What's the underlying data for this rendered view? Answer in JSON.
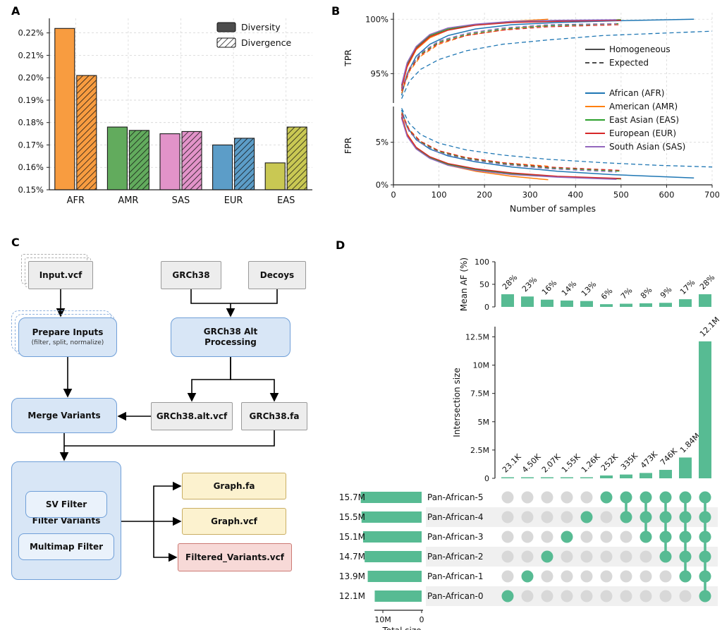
{
  "figure": {
    "panels": {
      "a": "A",
      "b": "B",
      "c": "C",
      "d": "D"
    }
  },
  "chart_data": [
    {
      "id": "panel-a",
      "type": "bar",
      "categories": [
        "AFR",
        "AMR",
        "SAS",
        "EUR",
        "EAS"
      ],
      "series": [
        {
          "name": "Diversity",
          "pattern": "solid",
          "values": [
            0.222,
            0.178,
            0.175,
            0.17,
            0.162
          ]
        },
        {
          "name": "Divergence",
          "pattern": "hatch",
          "values": [
            0.201,
            0.1765,
            0.176,
            0.173,
            0.178
          ]
        }
      ],
      "bar_colors": [
        "#F89C40",
        "#62AB5D",
        "#E293C9",
        "#5C9DC8",
        "#C9C853"
      ],
      "ylim": [
        0.15,
        0.2265
      ],
      "yticks": [
        {
          "v": 0.15,
          "label": "0.15%"
        },
        {
          "v": 0.16,
          "label": "0.16%"
        },
        {
          "v": 0.17,
          "label": "0.17%"
        },
        {
          "v": 0.18,
          "label": "0.18%"
        },
        {
          "v": 0.19,
          "label": "0.19%"
        },
        {
          "v": 0.2,
          "label": "0.20%"
        },
        {
          "v": 0.21,
          "label": "0.21%"
        },
        {
          "v": 0.22,
          "label": "0.22%"
        }
      ]
    },
    {
      "id": "panel-b",
      "type": "line",
      "xlabel": "Number of samples",
      "xlim": [
        0,
        700
      ],
      "xticks": [
        0,
        100,
        200,
        300,
        400,
        500,
        600,
        700
      ],
      "subpanels": [
        {
          "ylabel": "TPR",
          "ylim": [
            92.3,
            100.6
          ],
          "yticks": [
            {
              "v": 95,
              "label": "95%"
            },
            {
              "v": 100,
              "label": "100%"
            }
          ]
        },
        {
          "ylabel": "FPR",
          "ylim": [
            0,
            9.2
          ],
          "yticks": [
            {
              "v": 0,
              "label": "0%"
            },
            {
              "v": 5,
              "label": "5%"
            }
          ]
        }
      ],
      "style_legend": [
        {
          "label": "Homogeneous",
          "dash": "solid"
        },
        {
          "label": "Expected",
          "dash": "dashed"
        }
      ],
      "populations": [
        {
          "key": "AFR",
          "label": "African (AFR)",
          "color": "#1f77b4"
        },
        {
          "key": "AMR",
          "label": "American (AMR)",
          "color": "#ff7f0e"
        },
        {
          "key": "EAS",
          "label": "East Asian (EAS)",
          "color": "#2ca02c"
        },
        {
          "key": "EUR",
          "label": "European (EUR)",
          "color": "#d62728"
        },
        {
          "key": "SAS",
          "label": "South Asian (SAS)",
          "color": "#9467bd"
        }
      ],
      "tpr": {
        "solid": {
          "AFR": [
            [
              18,
              93.0
            ],
            [
              30,
              95.0
            ],
            [
              50,
              96.6
            ],
            [
              80,
              97.7
            ],
            [
              120,
              98.5
            ],
            [
              180,
              99.1
            ],
            [
              260,
              99.5
            ],
            [
              360,
              99.7
            ],
            [
              480,
              99.85
            ],
            [
              660,
              100.0
            ]
          ],
          "AMR": [
            [
              18,
              93.6
            ],
            [
              30,
              95.6
            ],
            [
              50,
              97.2
            ],
            [
              80,
              98.3
            ],
            [
              120,
              99.0
            ],
            [
              180,
              99.5
            ],
            [
              260,
              99.8
            ],
            [
              340,
              100.0
            ]
          ],
          "EAS": [
            [
              18,
              93.9
            ],
            [
              30,
              95.9
            ],
            [
              50,
              97.4
            ],
            [
              80,
              98.5
            ],
            [
              120,
              99.1
            ],
            [
              180,
              99.5
            ],
            [
              260,
              99.75
            ],
            [
              360,
              99.85
            ],
            [
              500,
              99.95
            ]
          ],
          "EUR": [
            [
              18,
              93.7
            ],
            [
              30,
              95.7
            ],
            [
              50,
              97.3
            ],
            [
              80,
              98.4
            ],
            [
              120,
              99.0
            ],
            [
              180,
              99.45
            ],
            [
              260,
              99.7
            ],
            [
              360,
              99.8
            ],
            [
              500,
              99.9
            ]
          ],
          "SAS": [
            [
              18,
              94.0
            ],
            [
              30,
              96.0
            ],
            [
              50,
              97.5
            ],
            [
              80,
              98.6
            ],
            [
              120,
              99.2
            ],
            [
              180,
              99.55
            ],
            [
              260,
              99.8
            ],
            [
              360,
              99.9
            ],
            [
              490,
              99.95
            ]
          ]
        },
        "dashed": {
          "AFR": [
            [
              18,
              92.7
            ],
            [
              35,
              94.3
            ],
            [
              60,
              95.4
            ],
            [
              100,
              96.3
            ],
            [
              160,
              97.1
            ],
            [
              240,
              97.7
            ],
            [
              340,
              98.1
            ],
            [
              460,
              98.5
            ],
            [
              580,
              98.7
            ],
            [
              700,
              98.9
            ]
          ],
          "AMR": [
            [
              18,
              93.2
            ],
            [
              35,
              95.2
            ],
            [
              60,
              96.6
            ],
            [
              100,
              97.7
            ],
            [
              160,
              98.5
            ],
            [
              240,
              99.0
            ],
            [
              300,
              99.3
            ],
            [
              340,
              99.4
            ]
          ],
          "EAS": [
            [
              18,
              93.5
            ],
            [
              35,
              95.4
            ],
            [
              60,
              96.8
            ],
            [
              100,
              97.9
            ],
            [
              160,
              98.6
            ],
            [
              240,
              99.1
            ],
            [
              340,
              99.4
            ],
            [
              500,
              99.6
            ]
          ],
          "EUR": [
            [
              18,
              93.4
            ],
            [
              35,
              95.3
            ],
            [
              60,
              96.7
            ],
            [
              100,
              97.8
            ],
            [
              160,
              98.5
            ],
            [
              240,
              99.0
            ],
            [
              340,
              99.3
            ],
            [
              500,
              99.5
            ]
          ],
          "SAS": [
            [
              18,
              93.6
            ],
            [
              35,
              95.5
            ],
            [
              60,
              96.9
            ],
            [
              100,
              98.0
            ],
            [
              160,
              98.7
            ],
            [
              240,
              99.2
            ],
            [
              340,
              99.5
            ],
            [
              490,
              99.6
            ]
          ]
        }
      },
      "fpr": {
        "solid": {
          "AFR": [
            [
              18,
              8.8
            ],
            [
              30,
              6.8
            ],
            [
              50,
              5.3
            ],
            [
              80,
              4.2
            ],
            [
              120,
              3.4
            ],
            [
              180,
              2.7
            ],
            [
              260,
              2.1
            ],
            [
              360,
              1.6
            ],
            [
              480,
              1.2
            ],
            [
              660,
              0.8
            ]
          ],
          "AMR": [
            [
              18,
              8.2
            ],
            [
              30,
              6.0
            ],
            [
              50,
              4.4
            ],
            [
              80,
              3.2
            ],
            [
              120,
              2.3
            ],
            [
              180,
              1.6
            ],
            [
              260,
              1.0
            ],
            [
              340,
              0.6
            ]
          ],
          "EAS": [
            [
              18,
              7.9
            ],
            [
              30,
              5.8
            ],
            [
              50,
              4.3
            ],
            [
              80,
              3.2
            ],
            [
              120,
              2.4
            ],
            [
              180,
              1.8
            ],
            [
              260,
              1.3
            ],
            [
              360,
              0.95
            ],
            [
              500,
              0.7
            ]
          ],
          "EUR": [
            [
              18,
              8.0
            ],
            [
              30,
              5.9
            ],
            [
              50,
              4.4
            ],
            [
              80,
              3.3
            ],
            [
              120,
              2.5
            ],
            [
              180,
              1.9
            ],
            [
              260,
              1.4
            ],
            [
              360,
              1.0
            ],
            [
              500,
              0.75
            ]
          ],
          "SAS": [
            [
              18,
              7.8
            ],
            [
              30,
              5.7
            ],
            [
              50,
              4.2
            ],
            [
              80,
              3.1
            ],
            [
              120,
              2.3
            ],
            [
              180,
              1.7
            ],
            [
              260,
              1.2
            ],
            [
              360,
              0.9
            ],
            [
              490,
              0.65
            ]
          ]
        },
        "dashed": {
          "AFR": [
            [
              18,
              9.0
            ],
            [
              35,
              7.2
            ],
            [
              60,
              5.9
            ],
            [
              100,
              4.9
            ],
            [
              160,
              4.1
            ],
            [
              240,
              3.5
            ],
            [
              340,
              3.0
            ],
            [
              460,
              2.6
            ],
            [
              580,
              2.3
            ],
            [
              700,
              2.1
            ]
          ],
          "AMR": [
            [
              18,
              8.5
            ],
            [
              35,
              6.5
            ],
            [
              60,
              5.1
            ],
            [
              100,
              4.0
            ],
            [
              160,
              3.2
            ],
            [
              240,
              2.6
            ],
            [
              340,
              2.2
            ]
          ],
          "EAS": [
            [
              18,
              8.3
            ],
            [
              35,
              6.3
            ],
            [
              60,
              5.0
            ],
            [
              100,
              3.9
            ],
            [
              160,
              3.1
            ],
            [
              240,
              2.5
            ],
            [
              340,
              2.0
            ],
            [
              500,
              1.6
            ]
          ],
          "EUR": [
            [
              18,
              8.4
            ],
            [
              35,
              6.4
            ],
            [
              60,
              5.1
            ],
            [
              100,
              4.0
            ],
            [
              160,
              3.2
            ],
            [
              240,
              2.6
            ],
            [
              340,
              2.1
            ],
            [
              500,
              1.7
            ]
          ],
          "SAS": [
            [
              18,
              8.2
            ],
            [
              35,
              6.2
            ],
            [
              60,
              4.9
            ],
            [
              100,
              3.8
            ],
            [
              160,
              3.0
            ],
            [
              240,
              2.4
            ],
            [
              340,
              1.9
            ],
            [
              490,
              1.5
            ]
          ]
        }
      }
    },
    {
      "id": "panel-d",
      "type": "upset",
      "bar_color": "#57BB93",
      "dot_off_color": "#d8d8d8",
      "band_color": "#f0f0f0",
      "mean_af": {
        "ylabel": "Mean AF (%)",
        "yticks": [
          {
            "v": 0,
            "label": "0"
          },
          {
            "v": 50,
            "label": "50"
          },
          {
            "v": 100,
            "label": "100"
          }
        ],
        "values": [
          28,
          23,
          16,
          14,
          13,
          6,
          7,
          8,
          9,
          17,
          28
        ],
        "labels": [
          "28%",
          "23%",
          "16%",
          "14%",
          "13%",
          "6%",
          "7%",
          "8%",
          "9%",
          "17%",
          "28%"
        ]
      },
      "intersections": {
        "ylabel": "Intersection size",
        "yticks": [
          {
            "v": 0,
            "label": "0"
          },
          {
            "v": 2.5,
            "label": "2.5M"
          },
          {
            "v": 5,
            "label": "5M"
          },
          {
            "v": 7.5,
            "label": "7.5M"
          },
          {
            "v": 10,
            "label": "10M"
          },
          {
            "v": 12.5,
            "label": "12.5M"
          }
        ],
        "values_m": [
          0.0231,
          0.0045,
          0.00207,
          0.00155,
          0.00126,
          0.252,
          0.335,
          0.473,
          0.746,
          1.84,
          12.1
        ],
        "labels": [
          "23.1K",
          "4.50K",
          "2.07K",
          "1.55K",
          "1.26K",
          "252K",
          "335K",
          "473K",
          "746K",
          "1.84M",
          "12.1M"
        ],
        "memberships": [
          [
            5
          ],
          [
            4
          ],
          [
            3
          ],
          [
            2
          ],
          [
            1
          ],
          [
            0
          ],
          [
            0,
            1
          ],
          [
            0,
            1,
            2
          ],
          [
            0,
            1,
            2,
            3
          ],
          [
            0,
            1,
            2,
            3,
            4
          ],
          [
            0,
            1,
            2,
            3,
            4,
            5
          ]
        ]
      },
      "sets": {
        "names": [
          "Pan-African-5",
          "Pan-African-4",
          "Pan-African-3",
          "Pan-African-2",
          "Pan-African-1",
          "Pan-African-0"
        ],
        "size_labels": [
          "15.7M",
          "15.5M",
          "15.1M",
          "14.7M",
          "13.9M",
          "12.1M"
        ],
        "sizes_m": [
          15.7,
          15.5,
          15.1,
          14.7,
          13.9,
          12.1
        ]
      },
      "total_axis": {
        "label": "Total size",
        "ticks": [
          {
            "v": 10,
            "label": "10M"
          },
          {
            "v": 0,
            "label": "0"
          }
        ]
      }
    }
  ],
  "flowchart": {
    "nodes": {
      "input_vcf": "Input.vcf",
      "grch38": "GRCh38",
      "decoys": "Decoys",
      "prepare_inputs": "Prepare Inputs",
      "prepare_inputs_sub": "(filter, split, normalize)",
      "grch38_alt": "GRCh38 Alt Processing",
      "merge_variants": "Merge Variants",
      "grch38_alt_vcf": "GRCh38.alt.vcf",
      "grch38_fa": "GRCh38.fa",
      "filter_variants": "Filter Variants",
      "sv_filter": "SV Filter",
      "multimap_filter": "Multimap Filter",
      "graph_fa": "Graph.fa",
      "graph_vcf": "Graph.vcf",
      "filtered_variants_vcf": "Filtered_Variants.vcf"
    }
  }
}
